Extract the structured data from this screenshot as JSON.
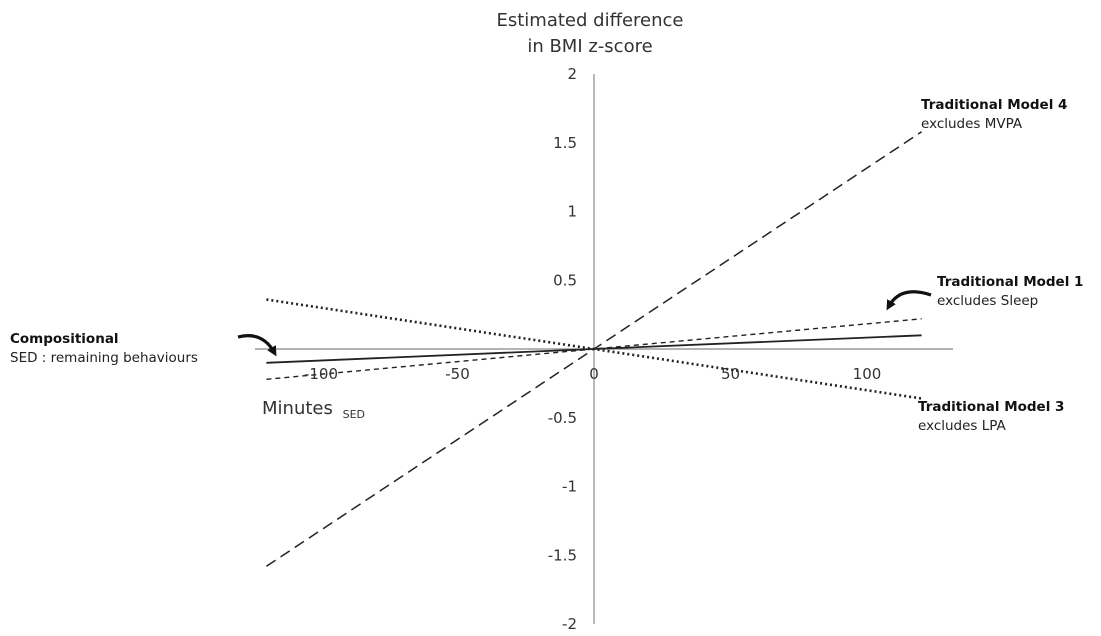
{
  "chart_data": {
    "type": "line",
    "ylabel_line1": "Estimated difference",
    "ylabel_line2": "in BMI z-score",
    "xlabel_main": "Minutes",
    "xlabel_sub": "SED",
    "xlim": [
      -120,
      120
    ],
    "ylim": [
      -2,
      2
    ],
    "grid": false,
    "x_ticks": [
      -100,
      -50,
      0,
      50,
      100
    ],
    "y_ticks": [
      -2,
      -1.5,
      -1,
      -0.5,
      0,
      0.5,
      1,
      1.5,
      2
    ],
    "x_tick_labels": [
      "-100",
      "-50",
      "0",
      "50",
      "100"
    ],
    "y_tick_labels": [
      "-2",
      "-1.5",
      "-1",
      "-0.5",
      "",
      "0.5",
      "1",
      "1.5",
      "2"
    ],
    "series": [
      {
        "style": "solid",
        "x": [
          -120,
          0,
          120
        ],
        "y": [
          -0.1,
          0,
          0.1
        ],
        "annotation": {
          "title": "Compositional",
          "subtitle": "SED : remaining behaviours"
        }
      },
      {
        "style": "short-dash",
        "x": [
          -120,
          0,
          120
        ],
        "y": [
          -0.22,
          0,
          0.22
        ],
        "annotation": {
          "title": "Traditional Model 1",
          "subtitle": "excludes Sleep"
        }
      },
      {
        "style": "dotted",
        "x": [
          -120,
          0,
          120
        ],
        "y": [
          0.36,
          0,
          -0.36
        ],
        "annotation": {
          "title": "Traditional Model 3",
          "subtitle": "excludes LPA"
        }
      },
      {
        "style": "long-dash",
        "x": [
          -120,
          0,
          120
        ],
        "y": [
          -1.58,
          0,
          1.58
        ],
        "annotation": {
          "title": "Traditional Model 4",
          "subtitle": "excludes MVPA"
        }
      }
    ]
  }
}
